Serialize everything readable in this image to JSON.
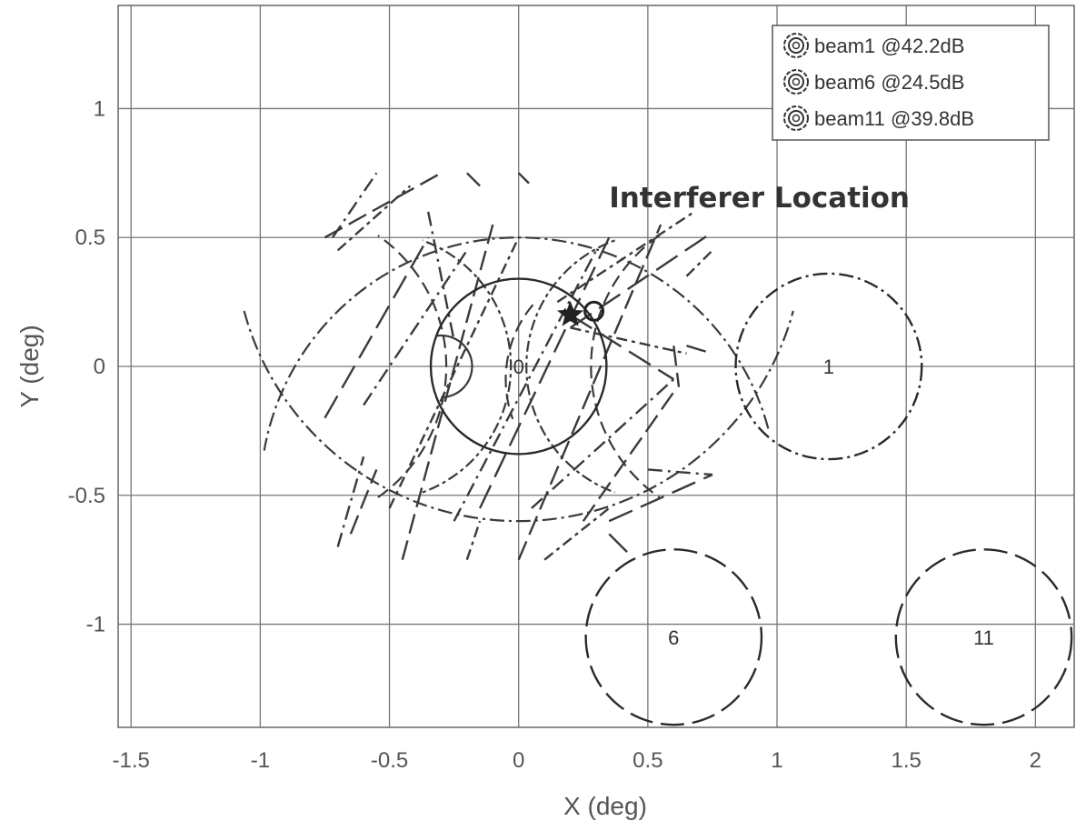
{
  "chart_data": {
    "type": "scatter",
    "title": "",
    "xlabel": "X (deg)",
    "ylabel": "Y (deg)",
    "xlim": [
      -1.55,
      2.15
    ],
    "ylim": [
      -1.4,
      1.4
    ],
    "xticks": [
      -1.5,
      -1,
      -0.5,
      0,
      0.5,
      1,
      1.5,
      2
    ],
    "xtick_labels": [
      "-1.5",
      "-1",
      "-0.5",
      "0",
      "0.5",
      "1",
      "1.5",
      "2"
    ],
    "yticks": [
      -1,
      -0.5,
      0,
      0.5,
      1
    ],
    "ytick_labels": [
      "-1",
      "-0.5",
      "0",
      "0.5",
      "1"
    ],
    "grid": true,
    "legend_position": "top-right",
    "legend": [
      {
        "label": "beam1 @42.2dB",
        "color": "#333333"
      },
      {
        "label": "beam6 @24.5dB",
        "color": "#333333"
      },
      {
        "label": "beam11 @39.8dB",
        "color": "#333333"
      }
    ],
    "beams": [
      {
        "label": "0",
        "center": [
          0,
          0
        ],
        "radius": 0.34,
        "style": "solid"
      },
      {
        "label": "1",
        "center": [
          1.2,
          0
        ],
        "radius": 0.36,
        "style": "dashdot"
      },
      {
        "label": "6",
        "center": [
          0.6,
          -1.05
        ],
        "radius": 0.34,
        "style": "longdash"
      },
      {
        "label": "11",
        "center": [
          1.8,
          -1.05
        ],
        "radius": 0.34,
        "style": "longdash"
      }
    ],
    "interferer": {
      "x": 0.2,
      "y": 0.2,
      "marker": "*"
    },
    "annotations": [
      {
        "text": "Interferer Location",
        "x": 0.35,
        "y": 0.66
      }
    ],
    "pattern_arcs": [
      {
        "center": [
          0,
          -0.5
        ],
        "radius": 1.0,
        "start_deg": 15,
        "end_deg": 170,
        "style": "dashdot"
      },
      {
        "center": [
          0,
          0.5
        ],
        "radius": 1.1,
        "start_deg": 195,
        "end_deg": 345,
        "style": "dashdot"
      },
      {
        "center": [
          -0.9,
          0
        ],
        "radius": 0.62,
        "start_deg": -55,
        "end_deg": 55,
        "style": "dash"
      },
      {
        "center": [
          0.9,
          0
        ],
        "radius": 0.62,
        "start_deg": 125,
        "end_deg": 235,
        "style": "dash"
      },
      {
        "center": [
          -0.55,
          0
        ],
        "radius": 0.52,
        "start_deg": -70,
        "end_deg": 70,
        "style": "dotdash"
      },
      {
        "center": [
          0.55,
          0
        ],
        "radius": 0.52,
        "start_deg": 110,
        "end_deg": 250,
        "style": "dotdash"
      },
      {
        "center": [
          0.4,
          -0.05
        ],
        "radius": 0.45,
        "start_deg": 140,
        "end_deg": 200,
        "style": "dash"
      },
      {
        "center": [
          -0.3,
          0
        ],
        "radius": 0.12,
        "start_deg": -90,
        "end_deg": 100,
        "style": "solid"
      }
    ],
    "pattern_segments": [
      [
        [
          -0.72,
          0.5
        ],
        [
          -0.55,
          0.75
        ]
      ],
      [
        [
          -0.75,
          0.5
        ],
        [
          -0.3,
          0.75
        ]
      ],
      [
        [
          -0.7,
          0.45
        ],
        [
          -0.42,
          0.7
        ]
      ],
      [
        [
          -0.75,
          -0.2
        ],
        [
          -0.35,
          0.5
        ]
      ],
      [
        [
          -0.6,
          -0.15
        ],
        [
          -0.2,
          0.45
        ]
      ],
      [
        [
          -0.45,
          -0.75
        ],
        [
          -0.1,
          0.55
        ]
      ],
      [
        [
          -0.5,
          -0.55
        ],
        [
          0.0,
          0.5
        ]
      ],
      [
        [
          -0.15,
          -0.55
        ],
        [
          0.35,
          0.5
        ]
      ],
      [
        [
          -0.25,
          -0.6
        ],
        [
          0.3,
          0.45
        ]
      ],
      [
        [
          0.0,
          -0.75
        ],
        [
          0.55,
          0.55
        ]
      ],
      [
        [
          0.15,
          0.25
        ],
        [
          0.68,
          0.6
        ]
      ],
      [
        [
          0.2,
          0.15
        ],
        [
          0.75,
          0.52
        ]
      ],
      [
        [
          0.05,
          -0.55
        ],
        [
          0.6,
          -0.05
        ]
      ],
      [
        [
          0.25,
          -0.6
        ],
        [
          0.6,
          -0.1
        ]
      ],
      [
        [
          0.2,
          0.15
        ],
        [
          0.65,
          0.05
        ]
      ],
      [
        [
          0.2,
          0.2
        ],
        [
          0.6,
          -0.05
        ]
      ],
      [
        [
          -0.35,
          0.6
        ],
        [
          -0.25,
          0.1
        ]
      ],
      [
        [
          0.6,
          0.08
        ],
        [
          0.62,
          -0.08
        ]
      ],
      [
        [
          0.1,
          -0.75
        ],
        [
          0.35,
          -0.55
        ]
      ],
      [
        [
          0.35,
          -0.6
        ],
        [
          0.75,
          -0.42
        ]
      ],
      [
        [
          -0.7,
          -0.7
        ],
        [
          -0.6,
          -0.35
        ]
      ],
      [
        [
          -0.65,
          -0.65
        ],
        [
          -0.55,
          -0.4
        ]
      ],
      [
        [
          -0.2,
          -0.75
        ],
        [
          -0.15,
          -0.6
        ]
      ],
      [
        [
          0.35,
          -0.65
        ],
        [
          0.45,
          -0.75
        ]
      ],
      [
        [
          0.5,
          -0.4
        ],
        [
          0.75,
          -0.42
        ]
      ],
      [
        [
          0.65,
          0.08
        ],
        [
          0.75,
          0.05
        ]
      ],
      [
        [
          0.65,
          0.35
        ],
        [
          0.75,
          0.45
        ]
      ],
      [
        [
          -0.2,
          0.75
        ],
        [
          -0.15,
          0.7
        ]
      ],
      [
        [
          0.0,
          0.75
        ],
        [
          0.05,
          0.7
        ]
      ]
    ]
  }
}
